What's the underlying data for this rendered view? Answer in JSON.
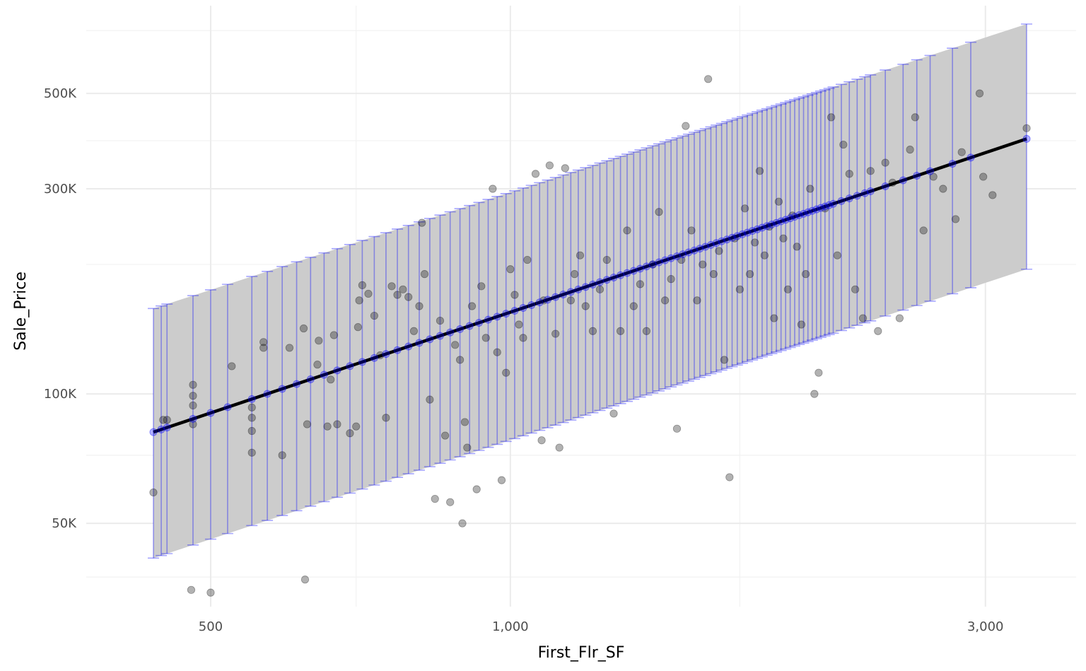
{
  "chart_data": {
    "type": "scatter",
    "title": "",
    "xlabel": "First_Flr_SF",
    "ylabel": "Sale_Price",
    "x_scale": "log10",
    "y_scale": "log10",
    "xlim": [
      375,
      3700
    ],
    "ylim": [
      32000,
      800000
    ],
    "x_ticks": [
      {
        "value": 500,
        "label": "500"
      },
      {
        "value": 1000,
        "label": "1,000"
      },
      {
        "value": 3000,
        "label": "3,000"
      }
    ],
    "x_minor_ticks": [
      700,
      1700
    ],
    "y_ticks": [
      {
        "value": 50000,
        "label": "50K"
      },
      {
        "value": 100000,
        "label": "100K"
      },
      {
        "value": 300000,
        "label": "300K"
      },
      {
        "value": 500000,
        "label": "500K"
      }
    ],
    "y_minor_ticks": [
      37500,
      72000,
      200000,
      388000,
      700000
    ],
    "grid": true,
    "colors": {
      "points": "#000000",
      "points_opacity": 0.3,
      "fit_line": "#000000",
      "prediction_band": "#cccccc",
      "interval_bars": "#0000ff",
      "predicted_points": "#0000ff",
      "grid": "#ebebeb"
    },
    "fit_line": {
      "x": [
        438,
        3300
      ],
      "y": [
        81500,
        392000
      ]
    },
    "prediction_band": {
      "x": [
        438,
        3300
      ],
      "lower": [
        41500,
        195000
      ],
      "upper": [
        158000,
        725000
      ]
    },
    "interval_bars_x": [
      438,
      446,
      452,
      480,
      500,
      520,
      550,
      570,
      590,
      610,
      630,
      650,
      670,
      690,
      710,
      730,
      750,
      770,
      790,
      810,
      830,
      850,
      870,
      890,
      910,
      930,
      950,
      970,
      990,
      1010,
      1030,
      1050,
      1070,
      1090,
      1110,
      1130,
      1150,
      1170,
      1190,
      1210,
      1230,
      1250,
      1270,
      1290,
      1310,
      1330,
      1350,
      1370,
      1390,
      1410,
      1430,
      1450,
      1470,
      1490,
      1510,
      1530,
      1550,
      1570,
      1590,
      1610,
      1630,
      1650,
      1670,
      1690,
      1710,
      1730,
      1750,
      1770,
      1790,
      1810,
      1830,
      1850,
      1870,
      1890,
      1910,
      1930,
      1950,
      1970,
      1990,
      2010,
      2030,
      2050,
      2070,
      2090,
      2110,
      2150,
      2190,
      2230,
      2270,
      2300,
      2380,
      2480,
      2560,
      2640,
      2780,
      2900,
      3300
    ],
    "points": [
      [
        438,
        59000
      ],
      [
        448,
        87000
      ],
      [
        452,
        87000
      ],
      [
        478,
        35000
      ],
      [
        480,
        105000
      ],
      [
        480,
        99000
      ],
      [
        480,
        94000
      ],
      [
        480,
        85000
      ],
      [
        500,
        34500
      ],
      [
        525,
        116000
      ],
      [
        550,
        93000
      ],
      [
        550,
        88000
      ],
      [
        550,
        82000
      ],
      [
        550,
        73000
      ],
      [
        565,
        132000
      ],
      [
        565,
        128000
      ],
      [
        590,
        72000
      ],
      [
        600,
        128000
      ],
      [
        620,
        142000
      ],
      [
        622,
        37000
      ],
      [
        625,
        85000
      ],
      [
        640,
        117000
      ],
      [
        642,
        133000
      ],
      [
        655,
        84000
      ],
      [
        660,
        108000
      ],
      [
        665,
        137000
      ],
      [
        670,
        85000
      ],
      [
        690,
        81000
      ],
      [
        700,
        84000
      ],
      [
        703,
        143000
      ],
      [
        705,
        165000
      ],
      [
        710,
        179000
      ],
      [
        720,
        171000
      ],
      [
        730,
        152000
      ],
      [
        740,
        123000
      ],
      [
        750,
        88000
      ],
      [
        760,
        178000
      ],
      [
        770,
        170000
      ],
      [
        780,
        175000
      ],
      [
        790,
        168000
      ],
      [
        800,
        140000
      ],
      [
        810,
        160000
      ],
      [
        815,
        250000
      ],
      [
        820,
        190000
      ],
      [
        830,
        97000
      ],
      [
        840,
        57000
      ],
      [
        850,
        148000
      ],
      [
        860,
        80000
      ],
      [
        870,
        56000
      ],
      [
        880,
        130000
      ],
      [
        890,
        120000
      ],
      [
        895,
        50000
      ],
      [
        900,
        86000
      ],
      [
        905,
        75000
      ],
      [
        915,
        160000
      ],
      [
        925,
        60000
      ],
      [
        935,
        178000
      ],
      [
        945,
        135000
      ],
      [
        960,
        300000
      ],
      [
        970,
        125000
      ],
      [
        980,
        63000
      ],
      [
        990,
        112000
      ],
      [
        1000,
        195000
      ],
      [
        1010,
        170000
      ],
      [
        1020,
        145000
      ],
      [
        1030,
        135000
      ],
      [
        1040,
        205000
      ],
      [
        1060,
        325000
      ],
      [
        1075,
        78000
      ],
      [
        1080,
        165000
      ],
      [
        1095,
        340000
      ],
      [
        1110,
        138000
      ],
      [
        1120,
        75000
      ],
      [
        1135,
        335000
      ],
      [
        1150,
        165000
      ],
      [
        1160,
        190000
      ],
      [
        1175,
        210000
      ],
      [
        1190,
        160000
      ],
      [
        1210,
        140000
      ],
      [
        1230,
        175000
      ],
      [
        1250,
        205000
      ],
      [
        1270,
        90000
      ],
      [
        1290,
        140000
      ],
      [
        1310,
        240000
      ],
      [
        1330,
        160000
      ],
      [
        1350,
        180000
      ],
      [
        1370,
        140000
      ],
      [
        1390,
        200000
      ],
      [
        1410,
        265000
      ],
      [
        1430,
        165000
      ],
      [
        1450,
        185000
      ],
      [
        1470,
        83000
      ],
      [
        1485,
        205000
      ],
      [
        1500,
        420000
      ],
      [
        1520,
        240000
      ],
      [
        1540,
        165000
      ],
      [
        1560,
        200000
      ],
      [
        1580,
        540000
      ],
      [
        1600,
        190000
      ],
      [
        1620,
        215000
      ],
      [
        1640,
        120000
      ],
      [
        1660,
        64000
      ],
      [
        1680,
        230000
      ],
      [
        1700,
        175000
      ],
      [
        1720,
        270000
      ],
      [
        1740,
        190000
      ],
      [
        1760,
        225000
      ],
      [
        1780,
        330000
      ],
      [
        1800,
        210000
      ],
      [
        1820,
        245000
      ],
      [
        1840,
        150000
      ],
      [
        1860,
        280000
      ],
      [
        1880,
        230000
      ],
      [
        1900,
        175000
      ],
      [
        1920,
        260000
      ],
      [
        1940,
        220000
      ],
      [
        1960,
        145000
      ],
      [
        1980,
        190000
      ],
      [
        2000,
        300000
      ],
      [
        2020,
        100000
      ],
      [
        2040,
        112000
      ],
      [
        2070,
        270000
      ],
      [
        2100,
        440000
      ],
      [
        2130,
        210000
      ],
      [
        2160,
        380000
      ],
      [
        2190,
        325000
      ],
      [
        2220,
        175000
      ],
      [
        2260,
        150000
      ],
      [
        2300,
        330000
      ],
      [
        2340,
        140000
      ],
      [
        2380,
        345000
      ],
      [
        2420,
        310000
      ],
      [
        2460,
        150000
      ],
      [
        2520,
        370000
      ],
      [
        2550,
        440000
      ],
      [
        2600,
        240000
      ],
      [
        2660,
        320000
      ],
      [
        2720,
        300000
      ],
      [
        2800,
        255000
      ],
      [
        2840,
        365000
      ],
      [
        2960,
        500000
      ],
      [
        2985,
        320000
      ],
      [
        3050,
        290000
      ],
      [
        3300,
        415000
      ]
    ]
  }
}
